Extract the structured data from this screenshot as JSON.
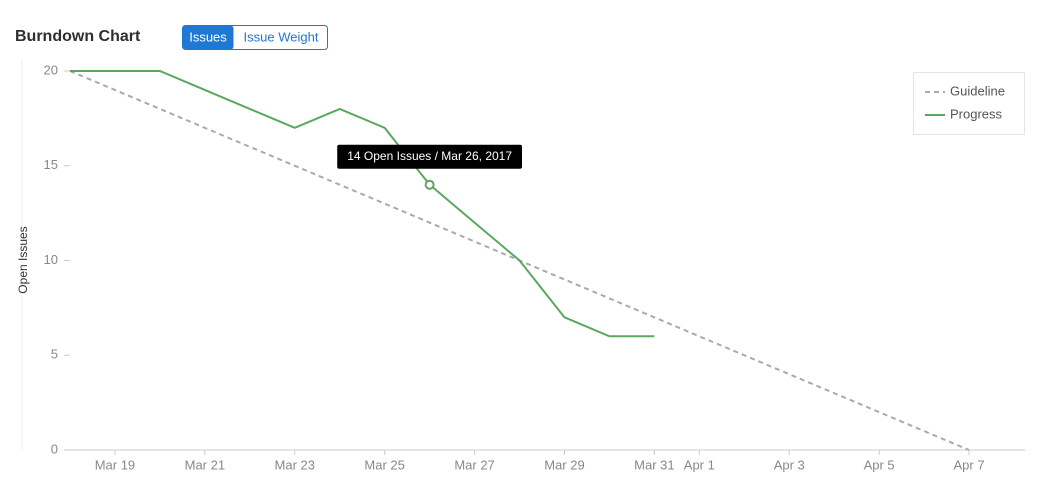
{
  "toggle": [
    "Issues",
    "Issue Weight"
  ],
  "chart_data": {
    "type": "line",
    "title": "Burndown Chart",
    "ylabel": "Open Issues",
    "tooltip": "14 Open Issues / Mar 26, 2017",
    "xlim": [
      "2017-03-18",
      "2017-04-08"
    ],
    "xticks": [
      {
        "value": "2017-03-19",
        "label": "Mar 19"
      },
      {
        "value": "2017-03-21",
        "label": "Mar 21"
      },
      {
        "value": "2017-03-23",
        "label": "Mar 23"
      },
      {
        "value": "2017-03-25",
        "label": "Mar 25"
      },
      {
        "value": "2017-03-27",
        "label": "Mar 27"
      },
      {
        "value": "2017-03-29",
        "label": "Mar 29"
      },
      {
        "value": "2017-03-31",
        "label": "Mar 31"
      },
      {
        "value": "2017-04-01",
        "label": "Apr 1"
      },
      {
        "value": "2017-04-03",
        "label": "Apr 3"
      },
      {
        "value": "2017-04-05",
        "label": "Apr 5"
      },
      {
        "value": "2017-04-07",
        "label": "Apr 7"
      }
    ],
    "ylim": [
      0,
      20
    ],
    "yticks": [
      0,
      5,
      10,
      15,
      20
    ],
    "legend": "upper right",
    "series": [
      {
        "name": "Guideline",
        "color": "#aaaaaa",
        "dashed": true,
        "x": [
          "2017-03-18",
          "2017-04-07"
        ],
        "values": [
          20,
          0
        ]
      },
      {
        "name": "Progress",
        "color": "#5aa85f",
        "dashed": false,
        "x": [
          "2017-03-18",
          "2017-03-19",
          "2017-03-20",
          "2017-03-21",
          "2017-03-22",
          "2017-03-23",
          "2017-03-24",
          "2017-03-25",
          "2017-03-26",
          "2017-03-27",
          "2017-03-28",
          "2017-03-29",
          "2017-03-30",
          "2017-03-31"
        ],
        "values": [
          20,
          20,
          20,
          19,
          18,
          17,
          18,
          17,
          14,
          12,
          10,
          7,
          6,
          6
        ]
      }
    ]
  }
}
